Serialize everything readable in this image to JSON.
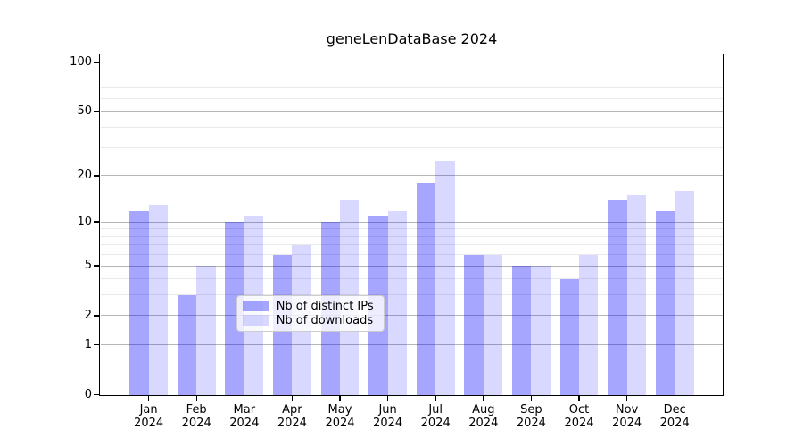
{
  "figure": {
    "title": "geneLenDataBase 2024"
  },
  "chart_data": {
    "type": "bar",
    "title": "geneLenDataBase 2024",
    "categories": [
      {
        "month": "Jan",
        "year": "2024"
      },
      {
        "month": "Feb",
        "year": "2024"
      },
      {
        "month": "Mar",
        "year": "2024"
      },
      {
        "month": "Apr",
        "year": "2024"
      },
      {
        "month": "May",
        "year": "2024"
      },
      {
        "month": "Jun",
        "year": "2024"
      },
      {
        "month": "Jul",
        "year": "2024"
      },
      {
        "month": "Aug",
        "year": "2024"
      },
      {
        "month": "Sep",
        "year": "2024"
      },
      {
        "month": "Oct",
        "year": "2024"
      },
      {
        "month": "Nov",
        "year": "2024"
      },
      {
        "month": "Dec",
        "year": "2024"
      }
    ],
    "series": [
      {
        "name": "Nb of distinct IPs",
        "color": "rgba(0,0,255,0.35)",
        "values": [
          12,
          3,
          10,
          6,
          10,
          11,
          18,
          6,
          5,
          4,
          14,
          12
        ]
      },
      {
        "name": "Nb of downloads",
        "color": "rgba(0,0,255,0.15)",
        "values": [
          13,
          5,
          11,
          7,
          14,
          12,
          25,
          6,
          5,
          6,
          15,
          16
        ]
      }
    ],
    "xlabel": "",
    "ylabel": "",
    "yscale": "log1p",
    "ylim": [
      0,
      112
    ],
    "yticks_major": [
      0,
      1,
      2,
      5,
      10,
      20,
      50,
      100
    ],
    "yticks_minor": [
      3,
      4,
      6,
      7,
      8,
      9,
      30,
      40,
      60,
      70,
      80,
      90
    ],
    "grid": "both",
    "legend_position": "lower center",
    "frame_color": "#000000",
    "grid_major_color": "#b5b5b5",
    "grid_minor_color": "#e9e9e9"
  }
}
